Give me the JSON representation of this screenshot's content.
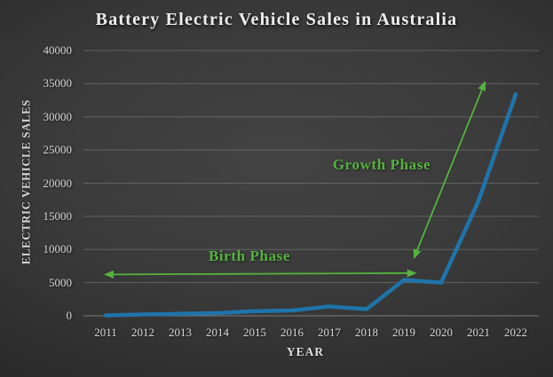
{
  "colors": {
    "line": "#1e74ab",
    "annotation_green": "#55b23e",
    "grid": "rgba(255,255,255,0.20)",
    "grid_zero": "rgba(255,255,255,0.34)",
    "text": "#d6d6d6",
    "title_text": "#eeeeee"
  },
  "chart_data": {
    "type": "line",
    "title": "Battery Electric Vehicle Sales in Australia",
    "xlabel": "YEAR",
    "ylabel": "ELECTRIC VEHICLE SALES",
    "categories": [
      "2011",
      "2012",
      "2013",
      "2014",
      "2015",
      "2016",
      "2017",
      "2018",
      "2019",
      "2020",
      "2021",
      "2022"
    ],
    "values": [
      50,
      200,
      300,
      400,
      700,
      800,
      1400,
      1000,
      5400,
      5000,
      17300,
      33400
    ],
    "ylim": [
      0,
      40000
    ],
    "yticks": [
      0,
      5000,
      10000,
      15000,
      20000,
      25000,
      30000,
      35000,
      40000
    ],
    "grid": "horizontal",
    "legend": "none",
    "annotations": [
      {
        "text": "Birth Phase",
        "type": "double-arrow-horizontal",
        "x1": 2011,
        "x2": 2019.35,
        "y": 6300
      },
      {
        "text": "Growth Phase",
        "type": "double-arrow-diagonal",
        "x1": 2019.26,
        "y1": 8550,
        "x2": 2021.19,
        "y2": 35450
      }
    ]
  }
}
